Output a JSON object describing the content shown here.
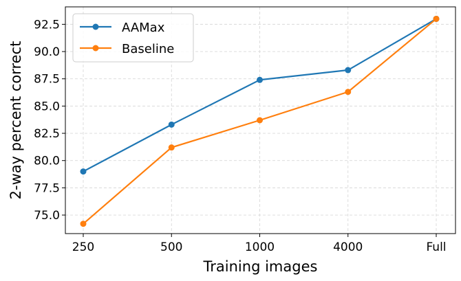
{
  "chart_data": {
    "type": "line",
    "title": "",
    "xlabel": "Training images",
    "ylabel": "2-way percent correct",
    "categories": [
      "250",
      "500",
      "1000",
      "4000",
      "Full"
    ],
    "ylim": [
      73.3,
      94.1
    ],
    "yticks": [
      "75.0",
      "77.5",
      "80.0",
      "82.5",
      "85.0",
      "87.5",
      "90.0",
      "92.5"
    ],
    "grid": true,
    "legend_position": "top-left",
    "series": [
      {
        "name": "AAMax",
        "color": "#1f77b4",
        "values": [
          79.0,
          83.3,
          87.4,
          88.3,
          93.0
        ]
      },
      {
        "name": "Baseline",
        "color": "#ff7f0e",
        "values": [
          74.2,
          81.2,
          83.7,
          86.3,
          93.0
        ]
      }
    ]
  }
}
